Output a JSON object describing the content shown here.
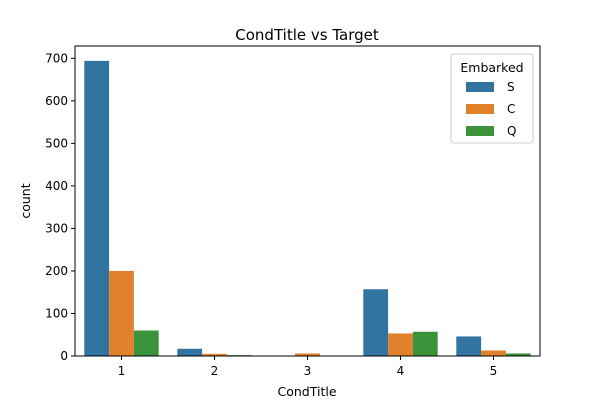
{
  "chart_data": {
    "type": "bar",
    "title": "CondTitle vs Target",
    "xlabel": "CondTitle",
    "ylabel": "count",
    "categories": [
      "1",
      "2",
      "3",
      "4",
      "5"
    ],
    "series": [
      {
        "name": "S",
        "color": "#3274a1",
        "values": [
          694,
          17,
          0,
          157,
          46
        ]
      },
      {
        "name": "C",
        "color": "#e1812c",
        "values": [
          200,
          5,
          6,
          53,
          13
        ]
      },
      {
        "name": "Q",
        "color": "#3a923a",
        "values": [
          60,
          2,
          0,
          57,
          6
        ]
      }
    ],
    "ylim": [
      0,
      729
    ],
    "yticks": [
      0,
      100,
      200,
      300,
      400,
      500,
      600,
      700
    ],
    "legend": {
      "title": "Embarked",
      "placement": "top-right"
    },
    "grid": false
  }
}
